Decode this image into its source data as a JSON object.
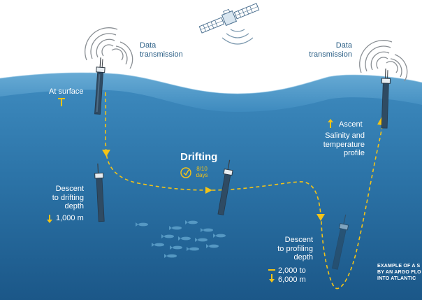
{
  "labels": {
    "data_transmission_left": "Data\ntransmission",
    "data_transmission_right": "Data\ntransmission",
    "at_surface": "At surface",
    "drifting": "Drifting",
    "drifting_days": "8/10\ndays",
    "descent_drifting": "Descent\nto drifting\ndepth",
    "drifting_depth": "1,000 m",
    "ascent": "Ascent",
    "salinity_profile": "Salinity and\ntemperature\nprofile",
    "descent_profiling": "Descent\nto profiling\ndepth",
    "profiling_depth": "2,000 to\n6,000 m",
    "caption": "EXAMPLE OF A S\nBY AN ARGO FLO\nINTO ATLANTIC"
  },
  "colors": {
    "sky": "#ffffff",
    "sea_top": "#3a86b8",
    "sea_bottom": "#1d5c8d",
    "path": "#f3c317",
    "text": "#ffffff",
    "sky_text": "#2b5f86"
  },
  "icons": [
    "satellite-icon",
    "signal-waves-icon",
    "argo-float-icon",
    "clock-icon",
    "fish-icon",
    "up-arrow-icon",
    "down-arrow-icon"
  ]
}
